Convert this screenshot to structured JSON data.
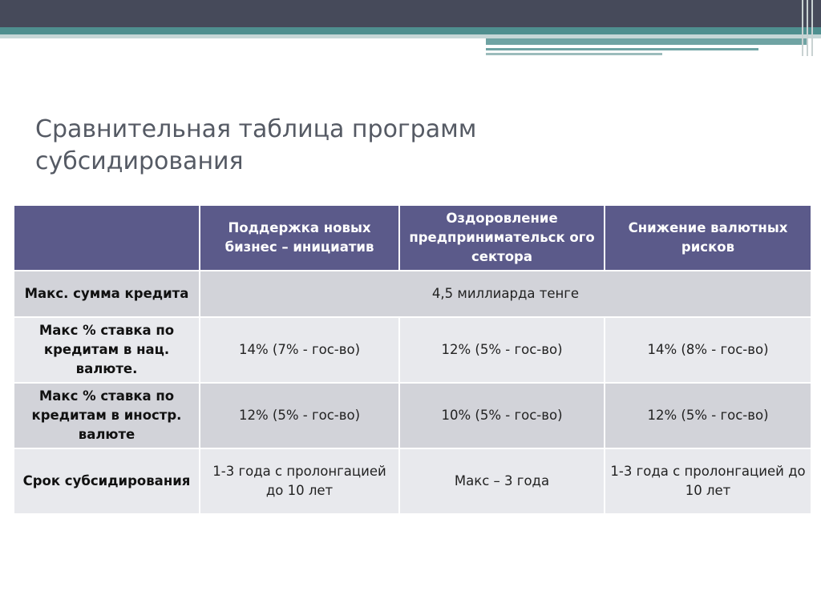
{
  "slide": {
    "title_line1": "Сравнительная таблица программ",
    "title_line2": "субсидирования"
  },
  "table": {
    "columns": [
      "",
      "Поддержка новых бизнес – инициатив",
      "Оздоровление предпринимательск ого сектора",
      "Снижение валютных рисков"
    ],
    "rows": [
      {
        "label": "Макс. сумма кредита",
        "merged_value": "4,5 миллиарда тенге"
      },
      {
        "label": "Макс % ставка по кредитам в нац. валюте.",
        "values": [
          "14% (7% - гос-во)",
          "12% (5% - гос-во)",
          "14% (8% - гос-во)"
        ]
      },
      {
        "label": "Макс % ставка по кредитам в иностр. валюте",
        "values": [
          "12% (5% - гос-во)",
          "10% (5% - гос-во)",
          "12% (5% - гос-во)"
        ]
      },
      {
        "label": "Срок субсидирования",
        "values": [
          "1-3 года с пролонгацией до 10 лет",
          "Макс – 3 года",
          "1-3 года с пролонгацией до 10 лет"
        ]
      }
    ]
  },
  "colors": {
    "header_bg": "#5b5a8a",
    "row_dark": "#d2d3d9",
    "row_light": "#e8e9ed",
    "top_bar": "#464a5a",
    "accent_teal": "#4f8f8f"
  }
}
